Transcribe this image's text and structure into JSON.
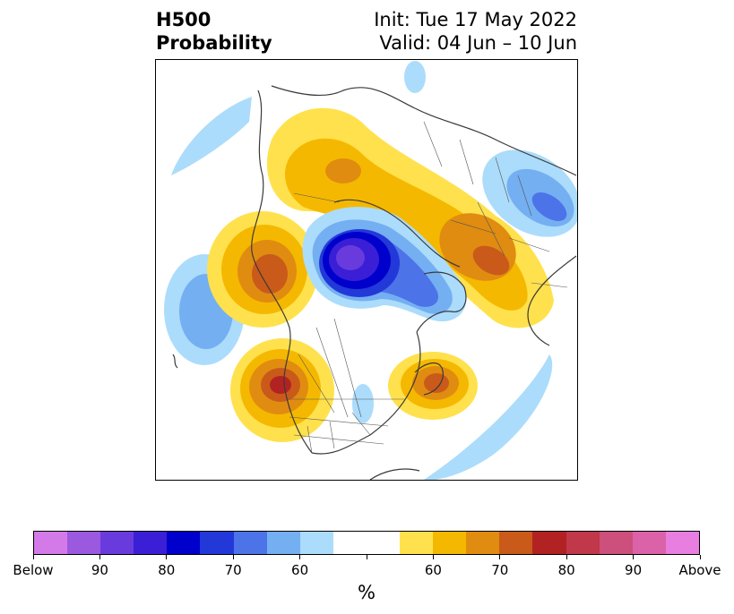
{
  "header": {
    "title_line1": "H500",
    "title_line2": "Probability",
    "init_text": "Init: Tue 17 May 2022",
    "valid_text": "Valid: 04 Jun – 10 Jun"
  },
  "map": {
    "projection": "polar stereographic, North America / Arctic",
    "features": [
      "coastlines",
      "country borders",
      "US state and Canadian province borders"
    ]
  },
  "colorbar": {
    "unit_label": "%",
    "colors": [
      "#d47ae8",
      "#9b59e0",
      "#6a3bdc",
      "#3a1fd6",
      "#0000cc",
      "#2338d8",
      "#4c73e8",
      "#74aff2",
      "#acdcfb",
      "#ffffff",
      "#ffffff",
      "#ffe14d",
      "#f5b800",
      "#e08c10",
      "#c95a1a",
      "#b32222",
      "#c0384a",
      "#cc4f7c",
      "#db62a8",
      "#e77ee0"
    ],
    "tick_labels": [
      "Below",
      "90",
      "80",
      "70",
      "60",
      "",
      "60",
      "70",
      "80",
      "90",
      "Above"
    ]
  }
}
